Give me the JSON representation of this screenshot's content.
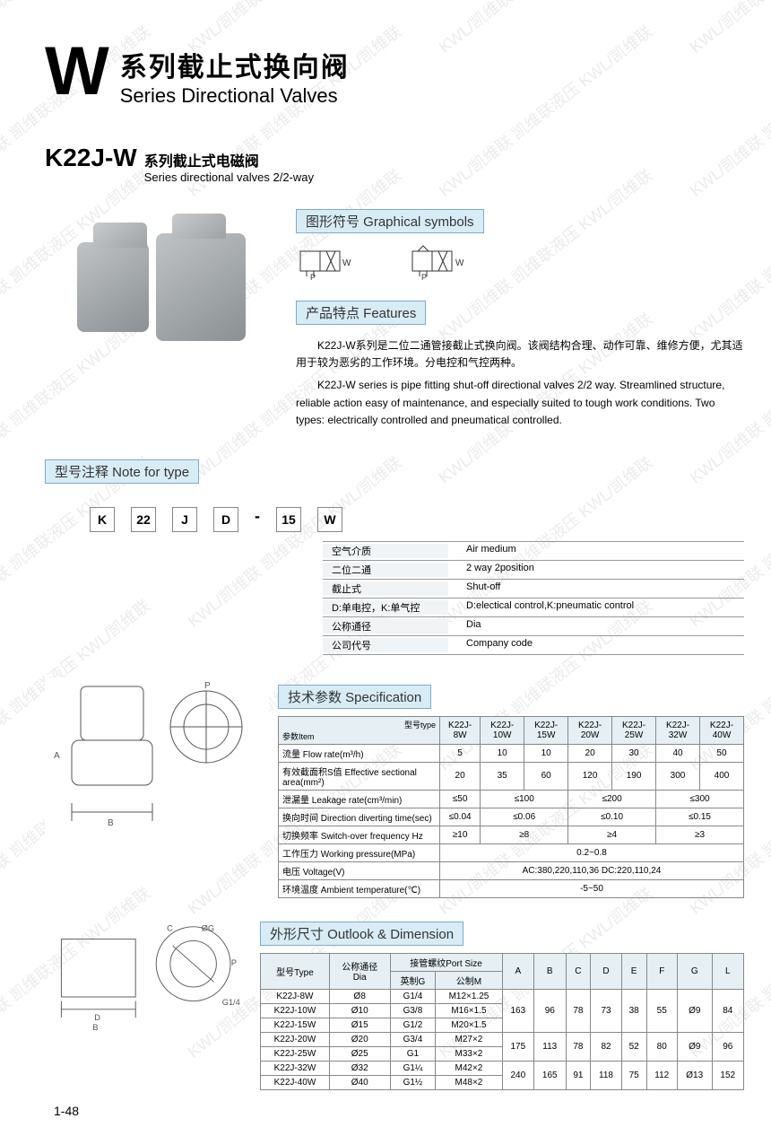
{
  "watermark": "KWL/凯维联   凯维联液压   KWL/凯维联",
  "title": {
    "bigLetter": "W",
    "cn": "系列截止式换向阀",
    "en": "Series Directional Valves"
  },
  "subtitle": {
    "model": "K22J-W",
    "cn": "系列截止式电磁阀",
    "en": "Series directional valves 2/2-way"
  },
  "labels": {
    "symbols": "图形符号 Graphical symbols",
    "features": "产品特点 Features",
    "noteType": "型号注释 Note for type",
    "spec": "技术参数 Specification",
    "outlook": "外形尺寸 Outlook & Dimension"
  },
  "features": {
    "cn": "K22J-W系列是二位二通管接截止式换向阀。该阀结构合理、动作可靠、维修方便，尤其适用于较为恶劣的工作环境。分电控和气控两种。",
    "en": "K22J-W series is pipe fitting shut-off directional valves 2/2 way. Streamlined structure, reliable action easy of maintenance, and especially suited to tough work conditions. Two types: electrically controlled and pneumatical controlled."
  },
  "code": {
    "letters": [
      "K",
      "22",
      "J",
      "D",
      "-",
      "15",
      "W"
    ],
    "rows": [
      {
        "cn": "空气介质",
        "en": "Air medium"
      },
      {
        "cn": "二位二通",
        "en": "2 way 2position"
      },
      {
        "cn": "截止式",
        "en": "Shut-off"
      },
      {
        "cn": "D:单电控，K:单气控",
        "en": "D:electical control,K:pneumatic control"
      },
      {
        "cn": "公称通径",
        "en": "Dia"
      },
      {
        "cn": "公司代号",
        "en": "Company code"
      }
    ]
  },
  "specHeaders": {
    "type": "型号type",
    "item": "参数Item"
  },
  "specModels": [
    "K22J-8W",
    "K22J-10W",
    "K22J-15W",
    "K22J-20W",
    "K22J-25W",
    "K22J-32W",
    "K22J-40W"
  ],
  "specRows": [
    {
      "label": "流量 Flow rate(m³/h)",
      "vals": [
        "5",
        "10",
        "10",
        "20",
        "30",
        "40",
        "50"
      ]
    },
    {
      "label": "有效截面积S值 Effective sectional area(mm²)",
      "vals": [
        "20",
        "35",
        "60",
        "120",
        "190",
        "300",
        "400"
      ]
    },
    {
      "label": "泄漏量 Leakage rate(cm³/min)",
      "vals": [
        "≤50",
        "≤100",
        "",
        "≤200",
        "",
        "≤300",
        ""
      ],
      "span": [
        1,
        2,
        0,
        2,
        0,
        2,
        0
      ]
    },
    {
      "label": "换向时间 Direction diverting time(sec)",
      "vals": [
        "≤0.04",
        "≤0.06",
        "",
        "≤0.10",
        "",
        "≤0.15",
        ""
      ],
      "span": [
        1,
        2,
        0,
        2,
        0,
        2,
        0
      ]
    },
    {
      "label": "切换频率 Switch-over frequency Hz",
      "vals": [
        "≥10",
        "≥8",
        "",
        "≥4",
        "",
        "≥3",
        ""
      ],
      "span": [
        1,
        2,
        0,
        2,
        0,
        2,
        0
      ]
    },
    {
      "label": "工作压力 Working pressure(MPa)",
      "vals": [
        "0.2~0.8"
      ],
      "span": [
        7
      ]
    },
    {
      "label": "电压 Voltage(V)",
      "vals": [
        "AC:380,220,110,36  DC:220,110,24"
      ],
      "span": [
        7
      ]
    },
    {
      "label": "环境温度 Ambient temperature(℃)",
      "vals": [
        "-5~50"
      ],
      "span": [
        7
      ]
    }
  ],
  "dimHeaders": {
    "type": "型号Type",
    "dia": "公称通径\nDia",
    "port": "接管螺纹Port Size",
    "inch": "英制G",
    "metric": "公制M",
    "cols": [
      "A",
      "B",
      "C",
      "D",
      "E",
      "F",
      "G",
      "L"
    ]
  },
  "dimRows": [
    {
      "model": "K22J-8W",
      "dia": "Ø8",
      "g": "G1/4",
      "m": "M12×1.25",
      "a": "163",
      "b": "96",
      "c": "78",
      "d": "73",
      "e": "38",
      "f": "55",
      "gg": "Ø9",
      "l": "84",
      "rs": 3
    },
    {
      "model": "K22J-10W",
      "dia": "Ø10",
      "g": "G3/8",
      "m": "M16×1.5"
    },
    {
      "model": "K22J-15W",
      "dia": "Ø15",
      "g": "G1/2",
      "m": "M20×1.5"
    },
    {
      "model": "K22J-20W",
      "dia": "Ø20",
      "g": "G3/4",
      "m": "M27×2",
      "a": "175",
      "b": "113",
      "c": "78",
      "d": "82",
      "e": "52",
      "f": "80",
      "gg": "Ø9",
      "l": "96",
      "rs": 2
    },
    {
      "model": "K22J-25W",
      "dia": "Ø25",
      "g": "G1",
      "m": "M33×2"
    },
    {
      "model": "K22J-32W",
      "dia": "Ø32",
      "g": "G1¼",
      "m": "M42×2",
      "a": "240",
      "b": "165",
      "c": "91",
      "d": "118",
      "e": "75",
      "f": "112",
      "gg": "Ø13",
      "l": "152",
      "rs": 2
    },
    {
      "model": "K22J-40W",
      "dia": "Ø40",
      "g": "G1½",
      "m": "M48×2"
    }
  ],
  "pageNum": "1-48"
}
